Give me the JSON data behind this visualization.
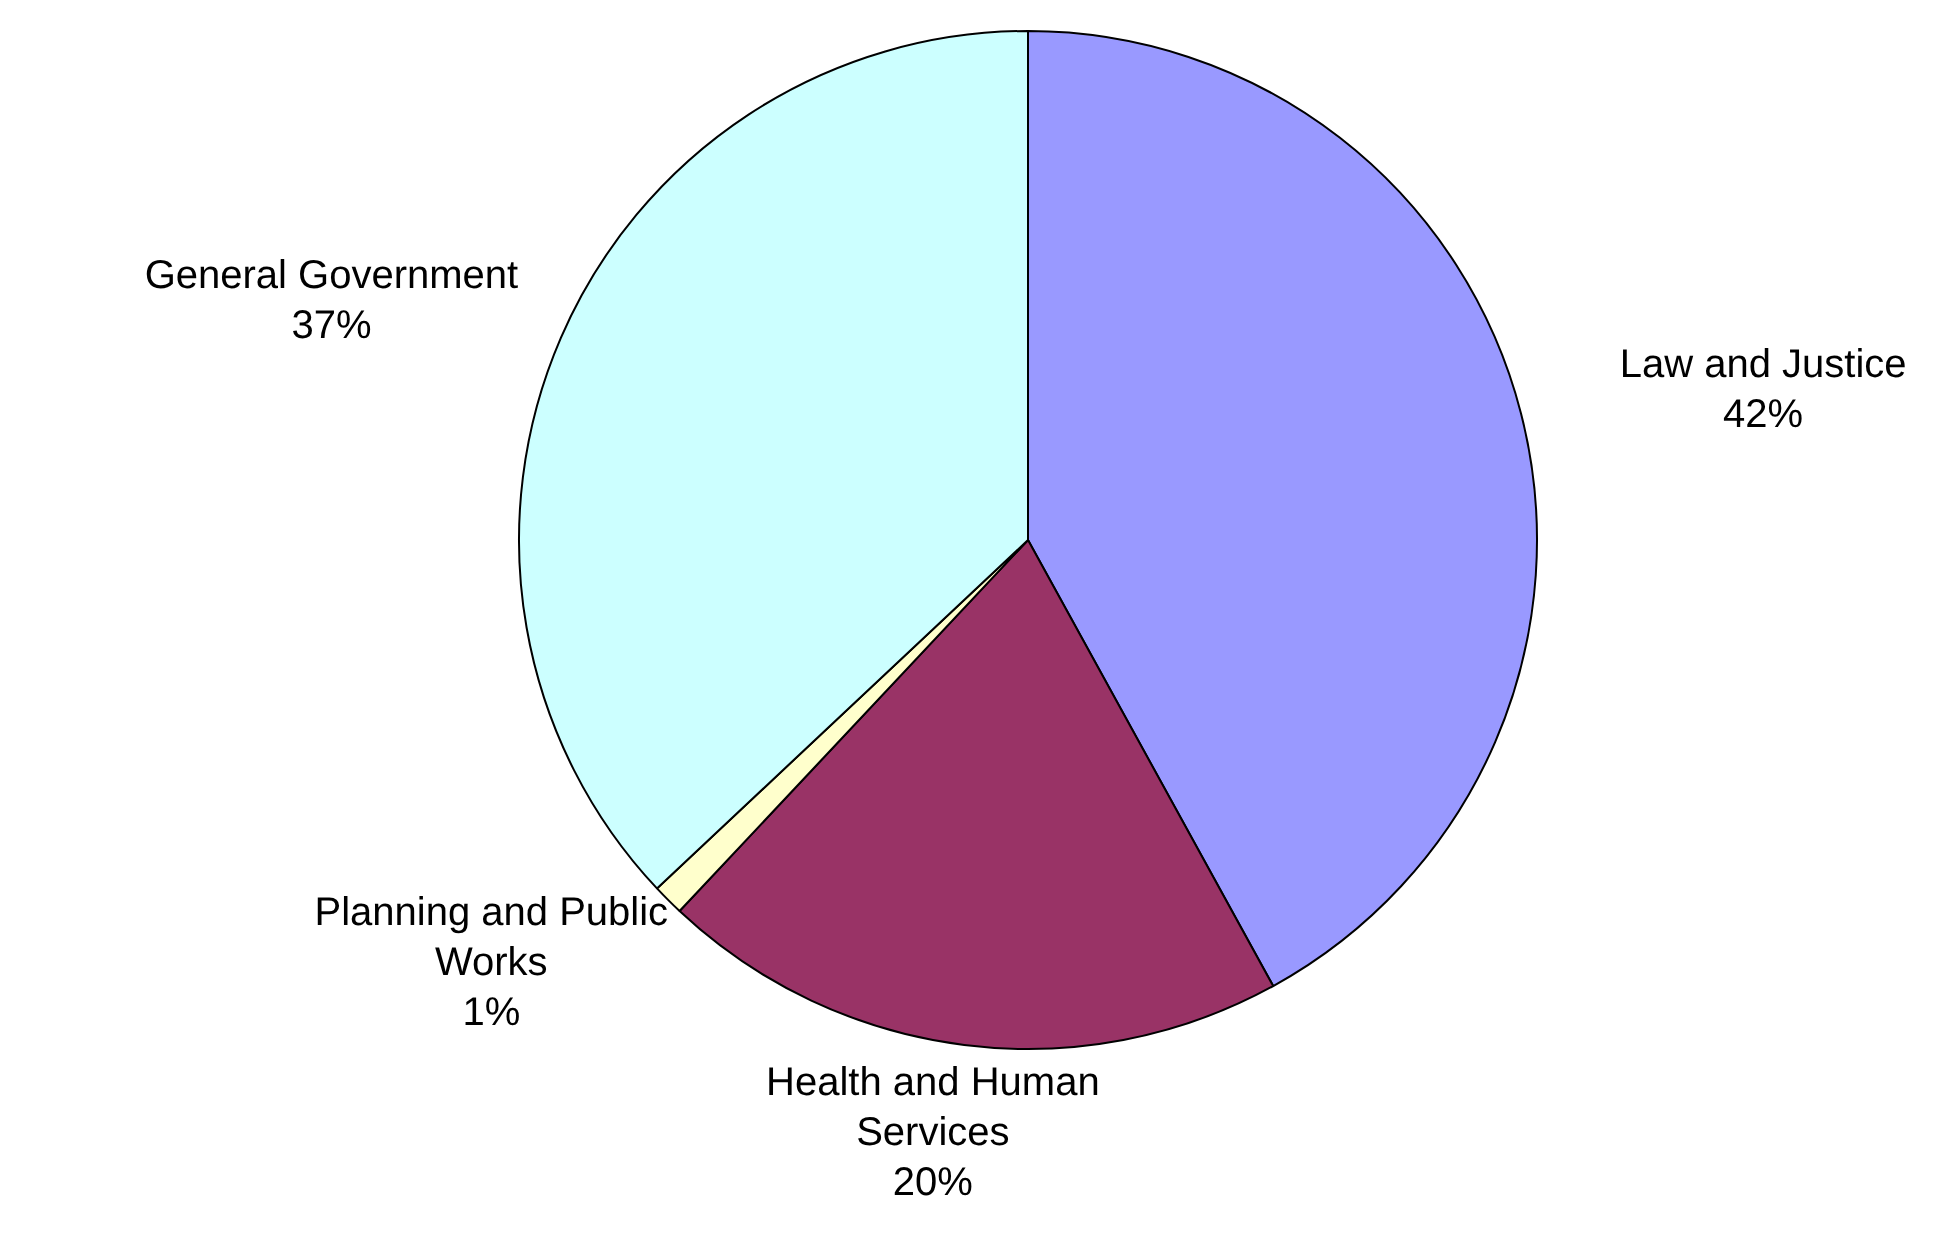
{
  "chart_data": {
    "type": "pie",
    "categories": [
      "Law and Justice",
      "Health and Human Services",
      "Planning and Public Works",
      "General Government"
    ],
    "values": [
      42,
      20,
      1,
      37
    ],
    "value_labels": [
      "42%",
      "20%",
      "1%",
      "37%"
    ],
    "colors": [
      "#9999ff",
      "#993366",
      "#ffffcc",
      "#ccffff"
    ],
    "legend": false
  }
}
